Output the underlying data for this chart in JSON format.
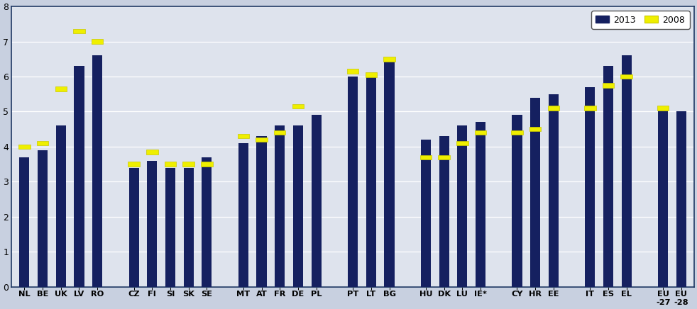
{
  "categories": [
    "NL",
    "BE",
    "UK",
    "LV",
    "RO",
    "",
    "CZ",
    "FI",
    "SI",
    "SK",
    "SE",
    "",
    "MT",
    "AT",
    "FR",
    "DE",
    "PL",
    "",
    "PT",
    "LT",
    "BG",
    "",
    "HU",
    "DK",
    "LU",
    "IE*",
    "",
    "CY",
    "HR",
    "EE",
    "",
    "IT",
    "ES",
    "EL",
    "",
    "EU\n-27",
    "EU\n-28"
  ],
  "values_2013": [
    3.7,
    3.9,
    4.6,
    6.3,
    6.6,
    null,
    3.4,
    3.6,
    3.4,
    3.4,
    3.7,
    null,
    4.1,
    4.3,
    4.6,
    4.6,
    4.9,
    null,
    6.0,
    6.1,
    6.5,
    null,
    4.2,
    4.3,
    4.6,
    4.7,
    null,
    4.9,
    5.4,
    5.5,
    null,
    5.7,
    6.3,
    6.6,
    null,
    5.1,
    5.0
  ],
  "values_2008": [
    4.0,
    4.1,
    5.65,
    7.3,
    7.0,
    null,
    3.5,
    3.85,
    3.5,
    3.5,
    3.5,
    null,
    4.3,
    4.2,
    4.4,
    5.15,
    null,
    null,
    6.15,
    6.05,
    6.5,
    null,
    3.7,
    3.7,
    4.1,
    4.4,
    null,
    4.4,
    4.5,
    5.1,
    null,
    5.1,
    5.75,
    6.0,
    null,
    5.1,
    null
  ],
  "bar_color": "#152060",
  "marker_color": "#EFEF00",
  "marker_edge_color": "#C8C800",
  "plot_bg_color": "#DEE3ED",
  "figure_bg_color": "#C8D0E0",
  "grid_color": "#FFFFFF",
  "border_color": "#1F3864",
  "ylim": [
    0,
    8
  ],
  "yticks": [
    0,
    1,
    2,
    3,
    4,
    5,
    6,
    7,
    8
  ],
  "legend_2013": "2013",
  "legend_2008": "2008"
}
